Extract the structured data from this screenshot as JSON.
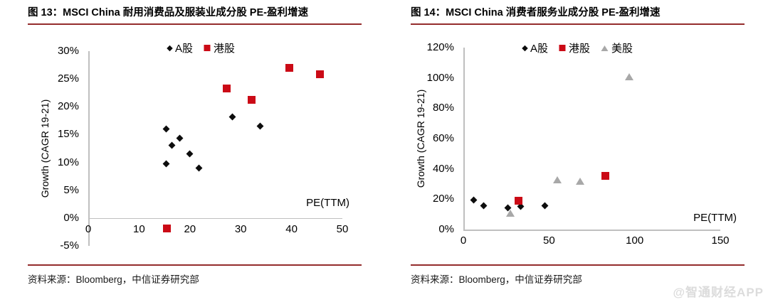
{
  "page": {
    "watermark": "@智通财经APP"
  },
  "colors": {
    "rule_maroon": "#942C2C",
    "marker_red": "#CB0A16",
    "marker_black": "#0D0D0D",
    "marker_gray": "#A8A8A8",
    "axis_gray": "#BFBFBF",
    "watermark_gray": "#DCDCDC"
  },
  "chart_data": [
    {
      "type": "scatter",
      "title": "图 13：MSCI China 耐用消费品及服装业成分股 PE-盈利增速",
      "source": "资料来源：Bloomberg，中信证券研究部",
      "xlabel": "PE(TTM)",
      "ylabel": "Growth (CAGR 19-21)",
      "xlim": [
        0,
        50
      ],
      "ylim": [
        -5,
        30
      ],
      "x_ticks": [
        0,
        10,
        20,
        30,
        40,
        50
      ],
      "y_ticks": [
        30,
        25,
        20,
        15,
        10,
        5,
        0,
        -5
      ],
      "y_tick_suffix": "%",
      "grid": false,
      "legend_position": "top-center",
      "series": [
        {
          "name": "A股",
          "marker": "diamond",
          "color": "#0D0D0D",
          "points": [
            [
              15.4,
              16.0
            ],
            [
              18.0,
              14.4
            ],
            [
              16.5,
              13.1
            ],
            [
              20.0,
              11.5
            ],
            [
              15.4,
              9.7
            ],
            [
              21.8,
              9.0
            ],
            [
              28.4,
              18.2
            ],
            [
              33.8,
              16.5
            ]
          ]
        },
        {
          "name": "港股",
          "marker": "square",
          "color": "#CB0A16",
          "points": [
            [
              27.2,
              23.3
            ],
            [
              32.2,
              21.3
            ],
            [
              39.5,
              27.0
            ],
            [
              45.6,
              25.9
            ],
            [
              15.5,
              -1.9
            ]
          ]
        }
      ]
    },
    {
      "type": "scatter",
      "title": "图 14：MSCI China 消费者服务业成分股 PE-盈利增速",
      "source": "资料来源：Bloomberg，中信证券研究部",
      "xlabel": "PE(TTM)",
      "ylabel": "Growth (CAGR 19-21)",
      "xlim": [
        0,
        150
      ],
      "ylim": [
        0,
        120
      ],
      "x_ticks": [
        0,
        50,
        100,
        150
      ],
      "y_ticks": [
        120,
        100,
        80,
        60,
        40,
        20,
        0
      ],
      "y_tick_suffix": "%",
      "grid": false,
      "legend_position": "top-center",
      "series": [
        {
          "name": "A股",
          "marker": "diamond",
          "color": "#0D0D0D",
          "points": [
            [
              6,
              19.4
            ],
            [
              12,
              15.5
            ],
            [
              26,
              14.1
            ],
            [
              33.5,
              15.3
            ],
            [
              47.5,
              15.9
            ]
          ]
        },
        {
          "name": "港股",
          "marker": "square",
          "color": "#CB0A16",
          "points": [
            [
              32.4,
              18.8
            ],
            [
              83,
              35.4
            ]
          ]
        },
        {
          "name": "美股",
          "marker": "triangle",
          "color": "#A8A8A8",
          "points": [
            [
              27.6,
              10.8
            ],
            [
              55,
              32.6
            ],
            [
              68,
              32.1
            ],
            [
              97,
              101
            ]
          ]
        }
      ]
    }
  ]
}
